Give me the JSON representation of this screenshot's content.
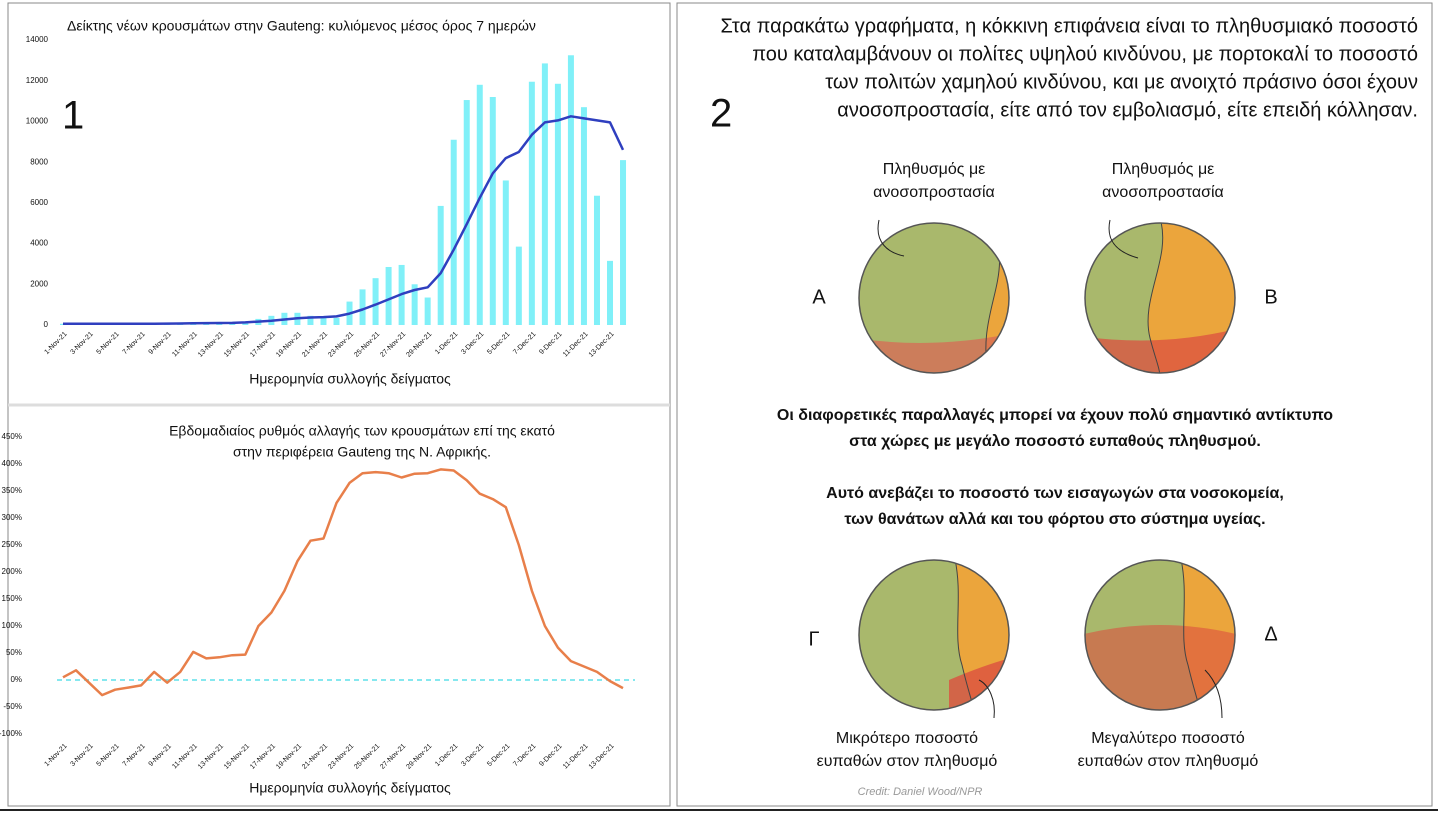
{
  "chart_data": [
    {
      "type": "bar",
      "label": "1",
      "title": "Δείκτης νέων κρουσμάτων στην Gauteng: κυλιόμενος μέσος όρος 7 ημερών",
      "x_label": "Ημερομηνία συλλογής δείγματος",
      "categories": [
        "1-Nov-21",
        null,
        "3-Nov-21",
        null,
        "5-Nov-21",
        null,
        "7-Nov-21",
        null,
        "9-Nov-21",
        null,
        "11-Nov-21",
        null,
        "13-Nov-21",
        null,
        "15-Nov-21",
        null,
        "17-Nov-21",
        null,
        "19-Nov-21",
        null,
        "21-Nov-21",
        null,
        "23-Nov-21",
        null,
        "25-Nov-21",
        null,
        "27-Nov-21",
        null,
        "29-Nov-21",
        null,
        "1-Dec-21",
        null,
        "3-Dec-21",
        null,
        "5-Dec-21",
        null,
        "7-Dec-21",
        null,
        "9-Dec-21",
        null,
        "11-Dec-21",
        null,
        "13-Dec-21",
        null
      ],
      "series": [
        {
          "type": "bar",
          "color": "#80f0f8",
          "values": [
            60,
            50,
            60,
            70,
            60,
            60,
            50,
            70,
            80,
            100,
            120,
            110,
            130,
            100,
            150,
            300,
            450,
            600,
            600,
            450,
            400,
            350,
            1150,
            1750,
            2300,
            2850,
            2950,
            2000,
            1350,
            5850,
            9100,
            11050,
            11800,
            11200,
            7100,
            3850,
            11950,
            12850,
            11850,
            13250,
            10700,
            6350,
            3150,
            8100
          ]
        },
        {
          "type": "line",
          "color": "#2f3fbf",
          "values": [
            60,
            60,
            60,
            60,
            60,
            60,
            60,
            65,
            70,
            75,
            85,
            95,
            100,
            105,
            130,
            165,
            210,
            270,
            330,
            370,
            390,
            420,
            560,
            760,
            1000,
            1260,
            1520,
            1720,
            1850,
            2550,
            3700,
            4950,
            6250,
            7450,
            8200,
            8500,
            9350,
            9950,
            10050,
            10250,
            10150,
            10050,
            9950,
            8600
          ]
        }
      ],
      "ylim": [
        0,
        14000
      ],
      "yticks": [
        0,
        2000,
        4000,
        6000,
        8000,
        10000,
        12000,
        14000
      ]
    },
    {
      "type": "line",
      "title": [
        "Εβδομαδιαίος ρυθμός αλλαγής των κρουσμάτων επί της εκατό",
        "στην περιφέρεια Gauteng της Ν. Αφρικής."
      ],
      "x_label": "Ημερομηνία συλλογής δείγματος",
      "categories": [
        "1-Nov-21",
        null,
        "3-Nov-21",
        null,
        "5-Nov-21",
        null,
        "7-Nov-21",
        null,
        "9-Nov-21",
        null,
        "11-Nov-21",
        null,
        "13-Nov-21",
        null,
        "15-Nov-21",
        null,
        "17-Nov-21",
        null,
        "19-Nov-21",
        null,
        "21-Nov-21",
        null,
        "23-Nov-21",
        null,
        "25-Nov-21",
        null,
        "27-Nov-21",
        null,
        "29-Nov-21",
        null,
        "1-Dec-21",
        null,
        "3-Dec-21",
        null,
        "5-Dec-21",
        null,
        "7-Dec-21",
        null,
        "9-Dec-21",
        null,
        "11-Dec-21",
        null,
        "13-Dec-21",
        null
      ],
      "series": [
        {
          "type": "line",
          "color": "#e87f4a",
          "values": [
            5,
            18,
            -5,
            -28,
            -18,
            -14,
            -10,
            15,
            -5,
            15,
            52,
            40,
            42,
            46,
            47,
            100,
            125,
            165,
            220,
            258,
            262,
            328,
            365,
            383,
            385,
            383,
            375,
            382,
            383,
            390,
            388,
            370,
            345,
            335,
            320,
            250,
            165,
            100,
            60,
            35,
            25,
            15,
            -2,
            -15
          ]
        }
      ],
      "zero_line_color": "#5ee0ea",
      "ylim": [
        -100,
        450
      ],
      "yticks": [
        {
          "value": -100,
          "label": "-100%"
        },
        {
          "value": -50,
          "label": "-50%"
        },
        {
          "value": 0,
          "label": "0%"
        },
        {
          "value": 50,
          "label": "50%"
        },
        {
          "value": 100,
          "label": "100%"
        },
        {
          "value": 150,
          "label": "150%"
        },
        {
          "value": 200,
          "label": "200%"
        },
        {
          "value": 250,
          "label": "250%"
        },
        {
          "value": 300,
          "label": "300%"
        },
        {
          "value": 350,
          "label": "350%"
        },
        {
          "value": 400,
          "label": "400%"
        },
        {
          "value": 450,
          "label": "450%"
        }
      ]
    }
  ],
  "panel2": {
    "label": "2",
    "intro": [
      "Στα παρακάτω γραφήματα, η κόκκινη επιφάνεια είναι το πληθυσμιακό ποσοστό",
      "που καταλαμβάνουν οι πολίτες υψηλού κινδύνου, με πορτοκαλί το ποσοστό",
      "των πολιτών χαμηλού κινδύνου, και με ανοιχτό πράσινο όσοι έχουν",
      "ανοσοπροστασία, είτε από τον εμβολιασμό, είτε επειδή κόλλησαν."
    ],
    "circles": [
      {
        "letter": "Α",
        "caption": [
          "Πληθυσμός με",
          "ανοσοπροστασία"
        ]
      },
      {
        "letter": "Β",
        "caption": [
          "Πληθυσμός με",
          "ανοσοπροστασία"
        ]
      },
      {
        "letter": "Γ",
        "caption": [
          "Μικρότερο ποσοστό",
          "ευπαθών στον πληθυσμό"
        ]
      },
      {
        "letter": "Δ",
        "caption": [
          "Μεγαλύτερο ποσοστό",
          "ευπαθών στον πληθυσμό"
        ]
      }
    ],
    "notes": [
      [
        "Οι διαφορετικές παραλλαγές μπορεί να έχουν πολύ σημαντικό αντίκτυπο",
        "στα χώρες με μεγάλο ποσοστό ευπαθούς πληθυσμού."
      ],
      [
        "Αυτό ανεβάζει το ποσοστό των εισαγωγών στα νοσοκομεία,",
        "των θανάτων αλλά και του φόρτου στο σύστημα υγείας."
      ]
    ],
    "credit": "Credit: Daniel Wood/NPR"
  }
}
